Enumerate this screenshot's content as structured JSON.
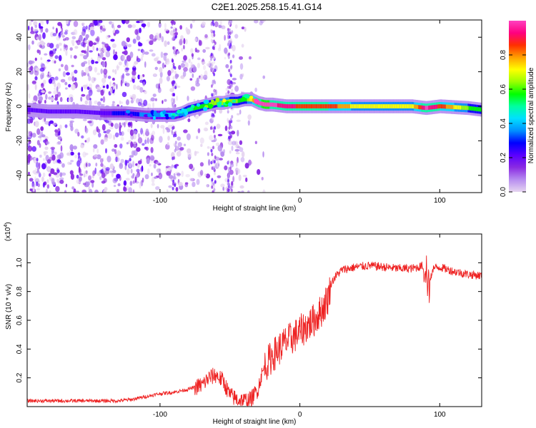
{
  "title": "C2E1.2025.258.15.41.G14",
  "chart_data": [
    {
      "type": "heatmap",
      "subtitle": "spectrogram",
      "xlabel": "Height of straight line (km)",
      "ylabel": "Frequency (Hz)",
      "xlim": [
        -195,
        130
      ],
      "ylim": [
        -50,
        50
      ],
      "xticks": [
        -100,
        0,
        100
      ],
      "xtick_labels": [
        "-100",
        "0",
        "100"
      ],
      "yticks": [
        -40,
        -20,
        0,
        20,
        40
      ],
      "ytick_labels": [
        "-40",
        "-20",
        "0",
        "20",
        "40"
      ],
      "ridge": {
        "description": "dominant frequency ridge (x in km, frequency in Hz)",
        "x": [
          -195,
          -180,
          -160,
          -140,
          -125,
          -110,
          -100,
          -90,
          -85,
          -80,
          -75,
          -70,
          -65,
          -60,
          -55,
          -50,
          -45,
          -40,
          -35,
          -30,
          -25,
          -20,
          -10,
          0,
          20,
          40,
          60,
          80,
          90,
          100,
          120,
          130
        ],
        "y": [
          -2,
          -3,
          -3,
          -4,
          -4,
          -5,
          -5,
          -5,
          -4,
          -2,
          -1,
          0,
          1,
          2,
          2,
          3,
          3,
          4,
          4,
          2,
          1,
          1,
          0,
          0,
          0,
          0,
          0,
          0,
          -1,
          0,
          -1,
          -2
        ],
        "amplitude": [
          0.25,
          0.2,
          0.2,
          0.25,
          0.3,
          0.35,
          0.4,
          0.45,
          0.5,
          0.5,
          0.55,
          0.55,
          0.6,
          0.6,
          0.65,
          0.6,
          0.6,
          0.55,
          0.7,
          0.95,
          1.0,
          0.95,
          0.9,
          0.85,
          0.85,
          0.7,
          0.7,
          0.7,
          0.95,
          0.85,
          0.6,
          0.55
        ]
      },
      "colorbar": {
        "label": "Normalized spectral amplitude",
        "range": [
          0,
          1
        ],
        "ticks": [
          0,
          0.2,
          0.4,
          0.6,
          0.8
        ],
        "tick_labels": [
          "0.0",
          "0.2",
          "0.4",
          "0.6",
          "0.8"
        ],
        "colors": [
          "#e6d5f0",
          "#b78df0",
          "#8a2be2",
          "#5a00ff",
          "#0000ff",
          "#0090ff",
          "#00e0ff",
          "#00ffa0",
          "#00ff00",
          "#9aff00",
          "#ffff00",
          "#ffa000",
          "#ff3000",
          "#ff0080",
          "#ff40c0"
        ]
      }
    },
    {
      "type": "line",
      "xlabel": "Height of straight line (km)",
      "ylabel": "SNR (10 * v/v)",
      "y_scale_label": "(x10",
      "y_scale_exp": "4",
      "y_scale_close": ")",
      "xlim": [
        -195,
        130
      ],
      "ylim": [
        0,
        1.2
      ],
      "xticks": [
        -100,
        0,
        100
      ],
      "xtick_labels": [
        "-100",
        "0",
        "100"
      ],
      "yticks": [
        0.2,
        0.4,
        0.6,
        0.8,
        1.0
      ],
      "ytick_labels": [
        "0.2",
        "0.4",
        "0.6",
        "0.8",
        "1.0"
      ],
      "series": [
        {
          "name": "SNR",
          "color": "#ee2222",
          "x": [
            -195,
            -170,
            -150,
            -130,
            -120,
            -110,
            -100,
            -90,
            -80,
            -70,
            -65,
            -60,
            -55,
            -50,
            -45,
            -40,
            -35,
            -30,
            -28,
            -25,
            -20,
            -15,
            -10,
            -5,
            0,
            5,
            10,
            15,
            20,
            22,
            25,
            30,
            40,
            50,
            60,
            70,
            80,
            85,
            90,
            92,
            95,
            100,
            110,
            120,
            130
          ],
          "y": [
            0.04,
            0.04,
            0.04,
            0.04,
            0.05,
            0.07,
            0.09,
            0.1,
            0.12,
            0.15,
            0.2,
            0.22,
            0.18,
            0.08,
            0.05,
            0.04,
            0.05,
            0.12,
            0.2,
            0.28,
            0.35,
            0.4,
            0.45,
            0.48,
            0.52,
            0.56,
            0.6,
            0.66,
            0.75,
            0.85,
            0.9,
            0.95,
            0.97,
            0.98,
            0.97,
            0.96,
            0.96,
            0.97,
            0.99,
            0.82,
            0.96,
            0.97,
            0.94,
            0.92,
            0.91
          ]
        }
      ]
    }
  ]
}
